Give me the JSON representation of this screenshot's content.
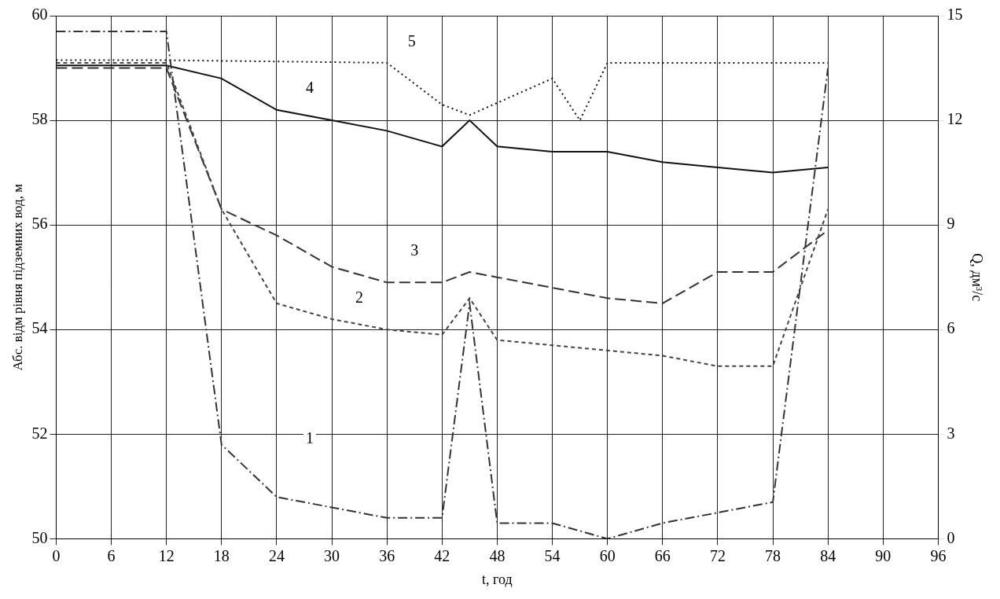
{
  "chart_data": {
    "type": "line",
    "x_label": "t, год",
    "y_label": "Абс. відм рівня підземних вод, м",
    "y2_label": "Q, дм³/с",
    "xlim": [
      0,
      96
    ],
    "xticks": [
      0,
      6,
      12,
      18,
      24,
      30,
      36,
      42,
      48,
      54,
      60,
      66,
      72,
      78,
      84,
      90,
      96
    ],
    "ylim": [
      50,
      60
    ],
    "yticks": [
      50,
      52,
      54,
      56,
      58,
      60
    ],
    "y2lim": [
      0,
      15
    ],
    "y2ticks": [
      0,
      3,
      6,
      9,
      12,
      15
    ],
    "grid": true,
    "series": [
      {
        "name": "1",
        "color": "#333333",
        "line_style": "dashdot",
        "x": [
          0,
          12,
          18,
          24,
          30,
          36,
          42,
          45,
          48,
          54,
          60,
          66,
          72,
          78,
          84
        ],
        "values": [
          59.7,
          59.7,
          51.8,
          50.8,
          50.6,
          50.4,
          50.4,
          54.5,
          50.3,
          50.3,
          50.0,
          50.3,
          50.5,
          50.7,
          59.0
        ]
      },
      {
        "name": "2",
        "color": "#444444",
        "line_style": "short_dash",
        "x": [
          0,
          12,
          18,
          24,
          30,
          36,
          42,
          45,
          48,
          54,
          60,
          66,
          72,
          78,
          84
        ],
        "values": [
          59.1,
          59.1,
          56.3,
          54.5,
          54.2,
          54.0,
          53.9,
          54.6,
          53.8,
          53.7,
          53.6,
          53.5,
          53.3,
          53.3,
          56.3
        ]
      },
      {
        "name": "3",
        "color": "#333333",
        "line_style": "dashed",
        "x": [
          0,
          12,
          18,
          24,
          30,
          36,
          42,
          45,
          48,
          54,
          60,
          66,
          72,
          78,
          84
        ],
        "values": [
          59.0,
          59.0,
          56.3,
          55.8,
          55.2,
          54.9,
          54.9,
          55.1,
          55.0,
          54.8,
          54.6,
          54.5,
          55.1,
          55.1,
          55.9
        ]
      },
      {
        "name": "4",
        "color": "#111111",
        "line_style": "solid",
        "x": [
          0,
          12,
          18,
          24,
          30,
          36,
          42,
          45,
          48,
          54,
          60,
          66,
          72,
          78,
          84
        ],
        "values": [
          59.05,
          59.05,
          58.8,
          58.2,
          58.0,
          57.8,
          57.5,
          58.0,
          57.5,
          57.4,
          57.4,
          57.2,
          57.1,
          57.0,
          57.1
        ]
      },
      {
        "name": "5",
        "color": "#111111",
        "line_style": "dotted",
        "x": [
          0,
          12,
          36,
          42,
          45,
          54,
          57,
          60,
          78,
          84
        ],
        "values": [
          59.15,
          59.15,
          59.1,
          58.3,
          58.1,
          58.8,
          58.0,
          59.1,
          59.1,
          59.1
        ]
      }
    ],
    "annotations": [
      {
        "text": "1",
        "x": 27.6,
        "y": 51.9
      },
      {
        "text": "2",
        "x": 33.0,
        "y": 54.6
      },
      {
        "text": "3",
        "x": 39.0,
        "y": 55.5
      },
      {
        "text": "4",
        "x": 27.6,
        "y": 58.6
      },
      {
        "text": "5",
        "x": 38.7,
        "y": 59.5
      }
    ]
  }
}
